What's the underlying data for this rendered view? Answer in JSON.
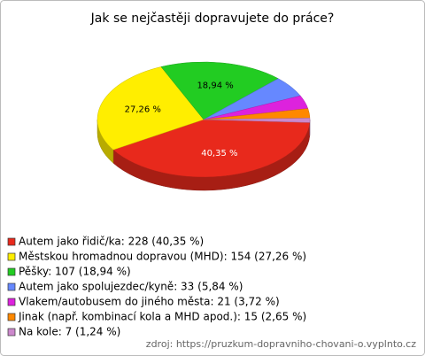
{
  "chart_data": {
    "type": "pie3d",
    "title": "Jak se nejčastěji dopravujete do práce?",
    "categories": [
      "Autem jako řidič/ka",
      "Městskou hromadnou dopravou (MHD)",
      "Pěšky",
      "Autem jako spolujezdec/kyně",
      "Vlakem/autobusem do jiného města",
      "Jinak (např. kombinací kola a MHD apod.)",
      "Na kole"
    ],
    "legend": [
      "Autem jako řidič/ka: 228 (40,35 %)",
      "Městskou hromadnou dopravou (MHD): 154 (27,26 %)",
      "Pěšky: 107 (18,94 %)",
      "Autem jako spolujezdec/kyně: 33 (5,84 %)",
      "Vlakem/autobusem do jiného města: 21 (3,72 %)",
      "Jinak (např. kombinací kola a MHD apod.): 15 (2,65 %)",
      "Na kole: 7 (1,24 %)"
    ],
    "values": [
      228,
      154,
      107,
      33,
      21,
      15,
      7
    ],
    "value_labels": [
      "40,35 %",
      "27,26 %",
      "18,94 %",
      null,
      null,
      null,
      null
    ],
    "colors": [
      "#e8291c",
      "#ffee00",
      "#22cc22",
      "#6688ff",
      "#dd22dd",
      "#ff8800",
      "#cc88cc"
    ],
    "source": "zdroj: https://pruzkum-dopravniho-chovani-o.vyplnto.cz"
  }
}
